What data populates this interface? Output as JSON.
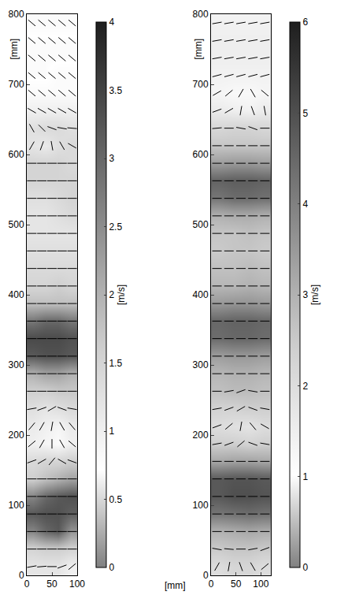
{
  "chart_data": [
    {
      "type": "heatmap",
      "x": [
        12.5,
        37.5,
        62.5,
        87.5
      ],
      "y": [
        12.5,
        37.5,
        62.5,
        87.5,
        112.5,
        137.5,
        162.5,
        187.5,
        212.5,
        237.5,
        262.5,
        287.5,
        312.5,
        337.5,
        362.5,
        387.5,
        412.5,
        437.5,
        462.5,
        487.5,
        512.5,
        537.5,
        562.5,
        587.5,
        612.5,
        637.5,
        662.5,
        687.5,
        712.5,
        737.5,
        762.5,
        787.5
      ],
      "z": [
        [
          1.2,
          1.2,
          1.2,
          1.0
        ],
        [
          1.5,
          1.6,
          1.6,
          1.5
        ],
        [
          2.6,
          3.0,
          3.2,
          2.4
        ],
        [
          3.2,
          3.3,
          3.3,
          3.1
        ],
        [
          2.6,
          3.0,
          3.2,
          3.3
        ],
        [
          1.6,
          1.8,
          2.0,
          2.2
        ],
        [
          1.4,
          1.5,
          1.5,
          1.6
        ],
        [
          1.0,
          0.9,
          0.8,
          1.0
        ],
        [
          1.1,
          1.0,
          0.9,
          1.1
        ],
        [
          1.3,
          1.2,
          1.3,
          1.4
        ],
        [
          1.6,
          1.6,
          1.7,
          1.7
        ],
        [
          2.0,
          2.2,
          2.2,
          2.0
        ],
        [
          3.2,
          3.3,
          3.3,
          3.2
        ],
        [
          3.4,
          3.4,
          3.4,
          3.3
        ],
        [
          2.8,
          3.0,
          3.0,
          2.8
        ],
        [
          1.8,
          1.8,
          1.8,
          1.8
        ],
        [
          1.5,
          1.5,
          1.6,
          1.5
        ],
        [
          1.4,
          1.4,
          1.4,
          1.4
        ],
        [
          1.3,
          1.3,
          1.3,
          1.3
        ],
        [
          1.2,
          1.2,
          1.2,
          1.2
        ],
        [
          1.2,
          1.2,
          1.3,
          1.4
        ],
        [
          1.3,
          1.3,
          1.4,
          1.5
        ],
        [
          1.5,
          1.5,
          1.5,
          1.5
        ],
        [
          1.5,
          1.5,
          1.5,
          1.4
        ],
        [
          1.2,
          1.1,
          1.3,
          1.4
        ],
        [
          1.3,
          1.4,
          1.4,
          1.3
        ],
        [
          1.0,
          1.0,
          1.0,
          1.0
        ],
        [
          0.8,
          0.8,
          0.8,
          0.8
        ],
        [
          0.7,
          0.7,
          0.8,
          0.8
        ],
        [
          0.7,
          0.7,
          0.7,
          0.7
        ],
        [
          0.7,
          0.7,
          0.7,
          0.7
        ],
        [
          0.8,
          0.8,
          0.8,
          0.8
        ]
      ],
      "xlim": [
        0,
        100
      ],
      "xticks": [
        0,
        50,
        100
      ],
      "ylim": [
        0,
        800
      ],
      "yticks": [
        0,
        100,
        200,
        300,
        400,
        500,
        600,
        700,
        800
      ],
      "x_label": "[mm]",
      "y_label": "[mm]",
      "colorbar": {
        "range": [
          0,
          4
        ],
        "ticks": [
          0,
          0.5,
          1,
          1.5,
          2,
          2.5,
          3,
          3.5,
          4
        ],
        "title": "[m/s]"
      },
      "vectors": {
        "x": [
          10,
          30,
          50,
          70,
          90
        ],
        "y": [
          12.5,
          37.5,
          62.5,
          87.5,
          112.5,
          137.5,
          162.5,
          187.5,
          212.5,
          237.5,
          262.5,
          287.5,
          312.5,
          337.5,
          362.5,
          387.5,
          412.5,
          437.5,
          462.5,
          487.5,
          512.5,
          537.5,
          562.5,
          587.5,
          612.5,
          637.5,
          662.5,
          687.5,
          712.5,
          737.5,
          762.5,
          787.5
        ],
        "angles": [
          [
            10,
            5,
            0,
            20,
            40
          ],
          [
            0,
            0,
            0,
            0,
            0
          ],
          [
            0,
            0,
            0,
            0,
            0
          ],
          [
            0,
            0,
            0,
            0,
            0
          ],
          [
            0,
            0,
            0,
            0,
            0
          ],
          [
            0,
            0,
            0,
            0,
            0
          ],
          [
            20,
            30,
            50,
            -30,
            -20
          ],
          [
            40,
            60,
            90,
            -60,
            -40
          ],
          [
            50,
            60,
            80,
            -60,
            -50
          ],
          [
            10,
            20,
            30,
            -20,
            -10
          ],
          [
            0,
            0,
            0,
            0,
            0
          ],
          [
            0,
            0,
            0,
            0,
            0
          ],
          [
            0,
            0,
            0,
            0,
            0
          ],
          [
            0,
            0,
            0,
            0,
            0
          ],
          [
            0,
            0,
            0,
            0,
            0
          ],
          [
            0,
            0,
            0,
            0,
            0
          ],
          [
            0,
            0,
            0,
            0,
            0
          ],
          [
            0,
            0,
            0,
            0,
            0
          ],
          [
            0,
            0,
            0,
            0,
            0
          ],
          [
            0,
            0,
            0,
            0,
            0
          ],
          [
            0,
            0,
            0,
            0,
            0
          ],
          [
            0,
            0,
            0,
            0,
            0
          ],
          [
            0,
            0,
            0,
            0,
            0
          ],
          [
            0,
            0,
            0,
            0,
            0
          ],
          [
            60,
            70,
            -80,
            -60,
            -30
          ],
          [
            -60,
            -45,
            -20,
            -10,
            -5
          ],
          [
            -30,
            -30,
            -30,
            -30,
            -30
          ],
          [
            -40,
            -40,
            -40,
            -40,
            -40
          ],
          [
            -40,
            -40,
            -40,
            -40,
            -40
          ],
          [
            -40,
            -40,
            -40,
            -40,
            -40
          ],
          [
            -40,
            -40,
            -40,
            -40,
            -40
          ],
          [
            -40,
            -40,
            -40,
            -40,
            -40
          ]
        ]
      },
      "grid": false
    },
    {
      "type": "heatmap",
      "x": [
        15,
        45,
        75,
        105
      ],
      "y": [
        12.5,
        37.5,
        62.5,
        87.5,
        112.5,
        137.5,
        162.5,
        187.5,
        212.5,
        237.5,
        262.5,
        287.5,
        312.5,
        337.5,
        362.5,
        387.5,
        412.5,
        437.5,
        462.5,
        487.5,
        512.5,
        537.5,
        562.5,
        587.5,
        612.5,
        637.5,
        662.5,
        687.5,
        712.5,
        737.5,
        762.5,
        787.5
      ],
      "z": [
        [
          2.0,
          2.2,
          2.2,
          2.0
        ],
        [
          2.5,
          2.6,
          2.6,
          2.5
        ],
        [
          3.0,
          3.1,
          3.2,
          3.1
        ],
        [
          4.2,
          4.3,
          4.4,
          4.3
        ],
        [
          4.8,
          5.0,
          5.0,
          4.9
        ],
        [
          4.8,
          4.9,
          4.9,
          4.8
        ],
        [
          3.2,
          3.3,
          3.3,
          3.2
        ],
        [
          2.4,
          2.4,
          2.3,
          2.4
        ],
        [
          2.0,
          1.9,
          1.8,
          2.0
        ],
        [
          2.3,
          2.3,
          2.4,
          2.4
        ],
        [
          2.7,
          2.8,
          2.8,
          2.7
        ],
        [
          2.9,
          3.0,
          3.0,
          2.9
        ],
        [
          3.4,
          3.5,
          3.5,
          3.4
        ],
        [
          4.4,
          4.5,
          4.5,
          4.4
        ],
        [
          4.5,
          4.6,
          4.6,
          4.5
        ],
        [
          3.5,
          3.6,
          3.6,
          3.5
        ],
        [
          2.9,
          2.9,
          3.0,
          2.9
        ],
        [
          2.7,
          2.7,
          2.8,
          2.7
        ],
        [
          2.5,
          2.6,
          2.6,
          2.5
        ],
        [
          2.6,
          2.6,
          2.7,
          2.6
        ],
        [
          3.0,
          3.1,
          3.1,
          3.0
        ],
        [
          4.2,
          4.4,
          4.4,
          4.3
        ],
        [
          4.6,
          4.7,
          4.7,
          4.6
        ],
        [
          3.4,
          3.5,
          3.5,
          3.4
        ],
        [
          2.6,
          2.6,
          2.6,
          2.6
        ],
        [
          2.2,
          2.3,
          2.3,
          2.2
        ],
        [
          1.6,
          1.5,
          1.4,
          1.6
        ],
        [
          1.3,
          1.2,
          1.2,
          1.3
        ],
        [
          1.4,
          1.4,
          1.4,
          1.4
        ],
        [
          1.5,
          1.5,
          1.5,
          1.5
        ],
        [
          1.5,
          1.5,
          1.5,
          1.5
        ],
        [
          1.4,
          1.4,
          1.4,
          1.4
        ]
      ],
      "xlim": [
        0,
        120
      ],
      "xticks": [
        0,
        50,
        100
      ],
      "ylim": [
        0,
        800
      ],
      "yticks": [
        0,
        100,
        200,
        300,
        400,
        500,
        600,
        700,
        800
      ],
      "y_label": "[mm]",
      "colorbar": {
        "range": [
          0,
          6
        ],
        "ticks": [
          0,
          1,
          2,
          3,
          4,
          5,
          6
        ],
        "title": "[m/s]"
      },
      "vectors": {
        "x": [
          12,
          36,
          60,
          84,
          108
        ],
        "y": [
          12.5,
          37.5,
          62.5,
          87.5,
          112.5,
          137.5,
          162.5,
          187.5,
          212.5,
          237.5,
          262.5,
          287.5,
          312.5,
          337.5,
          362.5,
          387.5,
          412.5,
          437.5,
          462.5,
          487.5,
          512.5,
          537.5,
          562.5,
          587.5,
          612.5,
          637.5,
          662.5,
          687.5,
          712.5,
          737.5,
          762.5,
          787.5
        ],
        "angles": [
          [
            60,
            80,
            -70,
            -60,
            40
          ],
          [
            -10,
            -5,
            0,
            10,
            20
          ],
          [
            0,
            0,
            0,
            0,
            0
          ],
          [
            0,
            0,
            0,
            0,
            0
          ],
          [
            0,
            0,
            0,
            0,
            0
          ],
          [
            0,
            0,
            0,
            0,
            0
          ],
          [
            0,
            0,
            0,
            0,
            0
          ],
          [
            10,
            20,
            40,
            -20,
            -10
          ],
          [
            20,
            40,
            80,
            -50,
            -30
          ],
          [
            10,
            20,
            30,
            -20,
            -10
          ],
          [
            0,
            10,
            20,
            -10,
            0
          ],
          [
            0,
            0,
            0,
            0,
            0
          ],
          [
            0,
            0,
            0,
            0,
            0
          ],
          [
            0,
            0,
            0,
            0,
            0
          ],
          [
            0,
            0,
            0,
            0,
            0
          ],
          [
            0,
            0,
            0,
            0,
            0
          ],
          [
            0,
            0,
            0,
            0,
            0
          ],
          [
            0,
            0,
            0,
            0,
            0
          ],
          [
            0,
            0,
            0,
            0,
            0
          ],
          [
            0,
            0,
            0,
            0,
            0
          ],
          [
            0,
            0,
            0,
            0,
            0
          ],
          [
            0,
            0,
            0,
            0,
            0
          ],
          [
            0,
            0,
            0,
            0,
            0
          ],
          [
            0,
            0,
            0,
            0,
            0
          ],
          [
            0,
            0,
            0,
            0,
            0
          ],
          [
            5,
            0,
            -10,
            -20,
            0
          ],
          [
            20,
            30,
            80,
            -70,
            -80
          ],
          [
            30,
            40,
            60,
            -60,
            -40
          ],
          [
            15,
            15,
            15,
            15,
            15
          ],
          [
            10,
            10,
            10,
            10,
            10
          ],
          [
            10,
            10,
            10,
            10,
            10
          ],
          [
            10,
            10,
            10,
            10,
            10
          ]
        ]
      },
      "grid": false
    }
  ]
}
